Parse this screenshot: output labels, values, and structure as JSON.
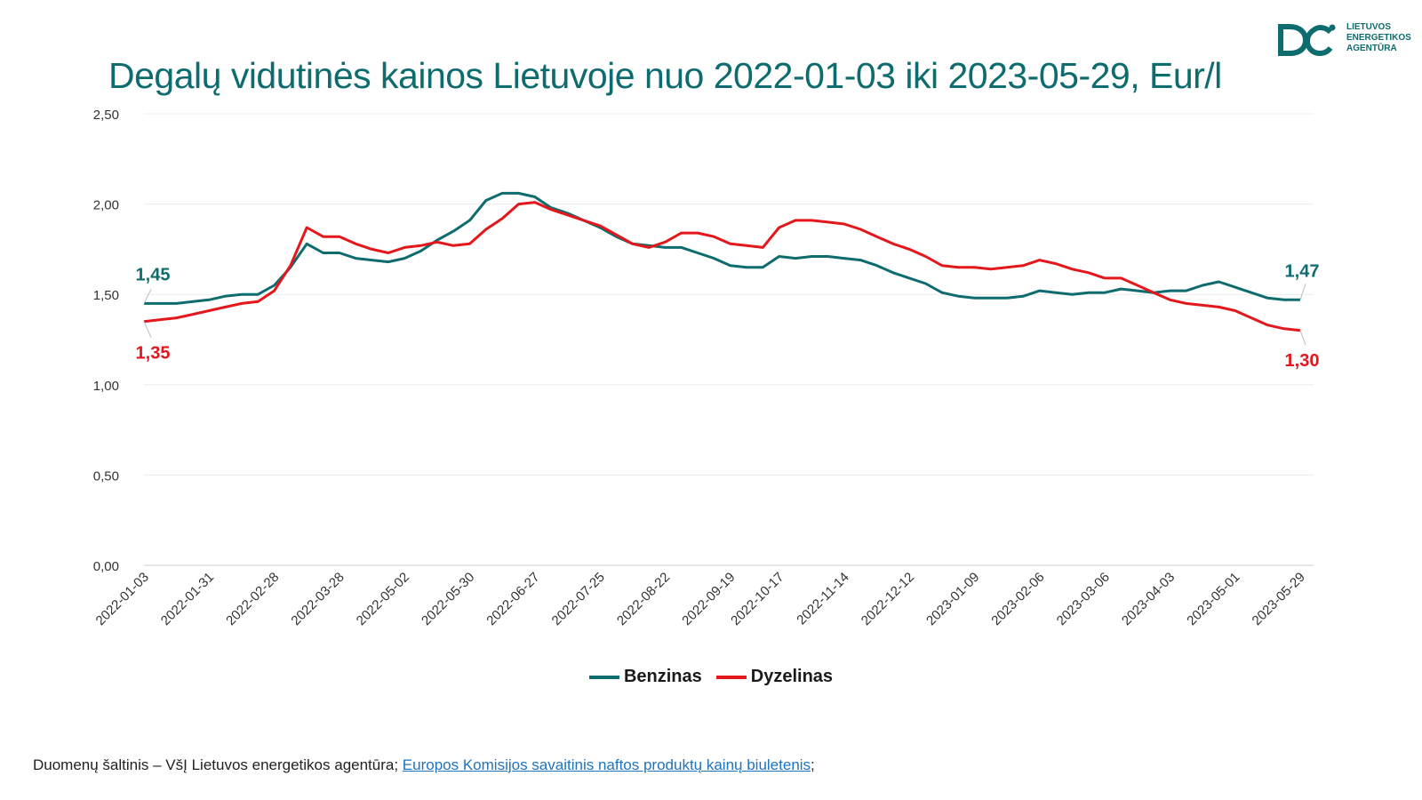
{
  "title": "Degalų vidutinės kainos Lietuvoje nuo 2022-01-03 iki 2023-05-29, Eur/l",
  "logo": {
    "lines": [
      "LIETUVOS",
      "ENERGETIKOS",
      "AGENTŪRA"
    ]
  },
  "source": {
    "prefix": "Duomenų šaltinis – VšĮ Lietuvos energetikos agentūra; ",
    "link_text": "Europos Komisijos savaitinis naftos produktų kainų biuletenis",
    "suffix": ";"
  },
  "colors": {
    "benzinas": "#0f6c6e",
    "dyzelinas": "#e3171c",
    "title": "#0f6c6e"
  },
  "chart_data": {
    "type": "line",
    "title": "Degalų vidutinės kainos Lietuvoje nuo 2022-01-03 iki 2023-05-29, Eur/l",
    "ylim": [
      0,
      2.5
    ],
    "yticks": [
      "0,00",
      "0,50",
      "1,00",
      "1,50",
      "2,00",
      "2,50"
    ],
    "grid": true,
    "legend_position": "bottom",
    "x_tick_labels": [
      "2022-01-03",
      "2022-01-31",
      "2022-02-28",
      "2022-03-28",
      "2022-05-02",
      "2022-05-30",
      "2022-06-27",
      "2022-07-25",
      "2022-08-22",
      "2022-09-19",
      "2022-10-17",
      "2022-11-14",
      "2022-12-12",
      "2023-01-09",
      "2023-02-06",
      "2023-03-06",
      "2023-04-03",
      "2023-05-01",
      "2023-05-29"
    ],
    "series": [
      {
        "name": "Benzinas",
        "color": "#0f6c6e",
        "values": [
          1.45,
          1.45,
          1.45,
          1.46,
          1.47,
          1.49,
          1.5,
          1.5,
          1.55,
          1.65,
          1.78,
          1.73,
          1.73,
          1.7,
          1.69,
          1.68,
          1.7,
          1.74,
          1.8,
          1.85,
          1.91,
          2.02,
          2.06,
          2.06,
          2.04,
          1.98,
          1.95,
          1.91,
          1.87,
          1.82,
          1.78,
          1.77,
          1.76,
          1.76,
          1.73,
          1.7,
          1.66,
          1.65,
          1.65,
          1.71,
          1.7,
          1.71,
          1.71,
          1.7,
          1.69,
          1.66,
          1.62,
          1.59,
          1.56,
          1.51,
          1.49,
          1.48,
          1.48,
          1.48,
          1.49,
          1.52,
          1.51,
          1.5,
          1.51,
          1.51,
          1.53,
          1.52,
          1.51,
          1.52,
          1.52,
          1.55,
          1.57,
          1.54,
          1.51,
          1.48,
          1.47,
          1.47
        ],
        "start_label": "1,45",
        "end_label": "1,47"
      },
      {
        "name": "Dyzelinas",
        "color": "#e3171c",
        "values": [
          1.35,
          1.36,
          1.37,
          1.39,
          1.41,
          1.43,
          1.45,
          1.46,
          1.52,
          1.66,
          1.87,
          1.82,
          1.82,
          1.78,
          1.75,
          1.73,
          1.76,
          1.77,
          1.79,
          1.77,
          1.78,
          1.86,
          1.92,
          2.0,
          2.01,
          1.97,
          1.94,
          1.91,
          1.88,
          1.83,
          1.78,
          1.76,
          1.79,
          1.84,
          1.84,
          1.82,
          1.78,
          1.77,
          1.76,
          1.87,
          1.91,
          1.91,
          1.9,
          1.89,
          1.86,
          1.82,
          1.78,
          1.75,
          1.71,
          1.66,
          1.65,
          1.65,
          1.64,
          1.65,
          1.66,
          1.69,
          1.67,
          1.64,
          1.62,
          1.59,
          1.59,
          1.55,
          1.51,
          1.47,
          1.45,
          1.44,
          1.43,
          1.41,
          1.37,
          1.33,
          1.31,
          1.3
        ],
        "start_label": "1,35",
        "end_label": "1,30"
      }
    ]
  }
}
